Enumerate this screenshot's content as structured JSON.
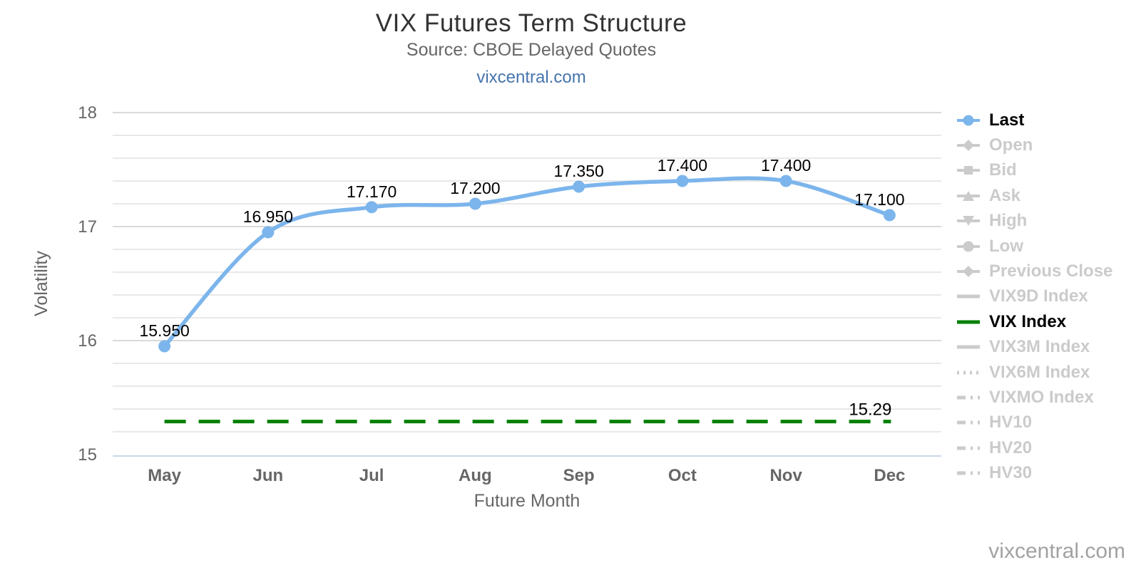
{
  "header": {
    "title": "VIX Futures Term Structure",
    "subtitle": "Source: CBOE Delayed Quotes",
    "link": "vixcentral.com"
  },
  "watermark": "vixcentral.com",
  "colors": {
    "last_series": "#7cb5ec",
    "vix_index_line": "#008000",
    "inactive_legend": "#cbcbcb",
    "active_legend_text": "#000000",
    "grid_major": "#d9d9d9",
    "grid_minor": "#e8e8e8",
    "axis_line": "#ccd6eb",
    "axis_text": "#666666",
    "title_text": "#333333",
    "link_text": "#4674ad",
    "data_label": "#000000",
    "watermark_text": "#a2a2a2"
  },
  "chart_data": {
    "type": "line",
    "title": "VIX Futures Term Structure",
    "subtitle": "Source: CBOE Delayed Quotes",
    "categories": [
      "May",
      "Jun",
      "Jul",
      "Aug",
      "Sep",
      "Oct",
      "Nov",
      "Dec"
    ],
    "series": [
      {
        "name": "Last",
        "type": "spline",
        "color": "#7cb5ec",
        "marker": "circle",
        "values": [
          15.95,
          16.95,
          17.17,
          17.2,
          17.35,
          17.4,
          17.4,
          17.1
        ],
        "labels": [
          "15.950",
          "16.950",
          "17.170",
          "17.200",
          "17.350",
          "17.400",
          "17.400",
          "17.100"
        ]
      },
      {
        "name": "VIX Index",
        "type": "dashed-horizontal",
        "color": "#008000",
        "value": 15.29,
        "label": "15.29"
      }
    ],
    "xlabel": "Future Month",
    "ylabel": "Volatility",
    "ylim": [
      15,
      18
    ],
    "yticks": [
      15,
      16,
      17,
      18
    ],
    "minor_grid_step": 0.2,
    "grid": true,
    "legend_position": "right"
  },
  "legend": {
    "items": [
      {
        "label": "Last",
        "marker": "line-circle",
        "active": true,
        "color": "#7cb5ec"
      },
      {
        "label": "Open",
        "marker": "line-diamond",
        "active": false
      },
      {
        "label": "Bid",
        "marker": "line-square",
        "active": false
      },
      {
        "label": "Ask",
        "marker": "line-triangle-up",
        "active": false
      },
      {
        "label": "High",
        "marker": "line-triangle-down",
        "active": false
      },
      {
        "label": "Low",
        "marker": "line-circle",
        "active": false
      },
      {
        "label": "Previous Close",
        "marker": "line-diamond",
        "active": false
      },
      {
        "label": "VIX9D Index",
        "marker": "line",
        "active": false
      },
      {
        "label": "VIX Index",
        "marker": "line",
        "active": true,
        "color": "#008000"
      },
      {
        "label": "VIX3M Index",
        "marker": "line",
        "active": false
      },
      {
        "label": "VIX6M Index",
        "marker": "line-dotted",
        "active": false
      },
      {
        "label": "VIXMO Index",
        "marker": "line-dashdot",
        "active": false
      },
      {
        "label": "HV10",
        "marker": "line-dashdot",
        "active": false
      },
      {
        "label": "HV20",
        "marker": "line-dashdot",
        "active": false
      },
      {
        "label": "HV30",
        "marker": "line-dashdot",
        "active": false
      }
    ]
  }
}
